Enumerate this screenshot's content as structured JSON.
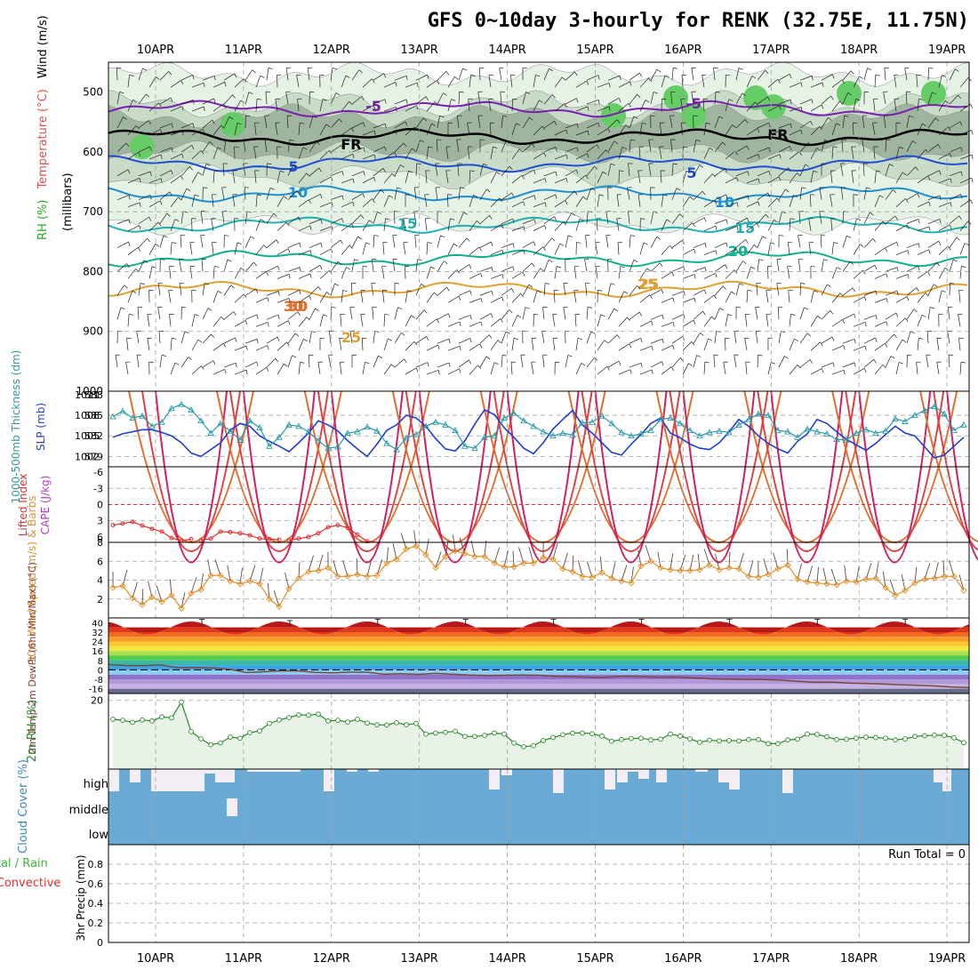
{
  "title": "GFS 0~10day 3-hourly for RENK (32.75E, 11.75N)",
  "colors": {
    "grid": "#a0a0a0",
    "frame": "#000000",
    "temp_neg": "#7a1fb0",
    "temp_fr": "#000000",
    "rh_light": "#e6f2e6",
    "rh_mid": "#c8dcc8",
    "rh_dark": "#9fb59f",
    "rh_green": "#66cc66",
    "thick": "#2a9aa8",
    "slp": "#1f3fd0",
    "cape": "#b040c0",
    "li": "#e03030",
    "wind10": "#e0902a",
    "barb": "#6a4a3a",
    "rh2m": "#2a8a2a",
    "rh2m_fill": "#e8f2e6",
    "cloud": "#6aaad4",
    "cloud_gap": "#f3eef6",
    "precip_total": "#33bb33",
    "precip_conv": "#e03030"
  },
  "chart_data": {
    "type": "line",
    "x_days": [
      "10APR",
      "11APR",
      "12APR",
      "13APR",
      "14APR",
      "15APR",
      "16APR",
      "17APR",
      "18APR",
      "19APR"
    ],
    "upper_air": {
      "ylabel_parts": [
        "RH (%)",
        "Temperature (°C)",
        "Wind (m/s)"
      ],
      "yunit": "(millibars)",
      "yticks": [
        "500",
        "600",
        "700",
        "800",
        "900",
        "1000"
      ],
      "ylim": [
        450,
        1000
      ],
      "contour_labels": [
        "-5",
        "FR",
        "5",
        "10",
        "15",
        "20",
        "25",
        "30",
        "25",
        "30",
        "-5",
        "FR",
        "5",
        "10",
        "15",
        "25",
        "30",
        "30"
      ],
      "isotherms": [
        {
          "label": "-5",
          "level": 528
        },
        {
          "label": "FR",
          "level": 575
        },
        {
          "label": "5",
          "level": 620
        },
        {
          "label": "10",
          "level": 670
        },
        {
          "label": "15",
          "level": 722
        },
        {
          "label": "20",
          "level": 778
        },
        {
          "label": "25",
          "level": 830
        }
      ]
    },
    "thickness_slp": {
      "ylabel": "1000-500mb Thickness (dm)",
      "ylabel2": "SLP (mb)",
      "yticks_left": [
        "588",
        "585",
        "582",
        "579"
      ],
      "yticks_right": [
        "1011",
        "1008",
        "1005",
        "1002"
      ],
      "thickness": [
        584.8,
        585.6,
        584.6,
        584.9,
        583.4,
        584.0,
        586.0,
        586.6,
        585.8,
        584.2,
        582.4,
        583.8,
        582.7,
        581.4,
        584.2,
        583.2,
        580.5,
        581.8,
        583.6,
        583.4,
        582.6,
        581.3,
        580.2,
        580.4,
        582.4,
        582.6,
        583.3,
        582.7,
        580.9,
        580.0,
        581.7,
        582.2,
        583.4,
        584.0,
        583.6,
        582.8,
        580.5,
        580.2,
        581.8,
        582.0,
        584.6,
        585.3,
        584.2,
        583.4,
        582.6,
        582.0,
        582.4,
        582.1,
        583.9,
        584.0,
        584.9,
        583.8,
        582.5,
        582.0,
        582.3,
        582.8,
        584.4,
        584.6,
        583.8,
        582.8,
        582.0,
        582.5,
        582.7,
        582.5,
        583.6,
        584.4,
        585.2,
        585.0,
        582.8,
        582.6,
        581.8,
        583.0,
        582.6,
        582.3,
        581.5,
        581.4,
        582.4,
        582.9,
        582.4,
        582.7,
        584.5,
        584.1,
        585.0,
        585.7,
        586.3,
        585.2,
        582.8,
        583.6
      ],
      "slp": [
        1004.8,
        1005.3,
        1005.6,
        1005.9,
        1005.9,
        1005.5,
        1005.0,
        1004.0,
        1002.5,
        1002.0,
        1003.0,
        1004.0,
        1005.8,
        1006.8,
        1006.4,
        1005.0,
        1004.2,
        1003.5,
        1002.7,
        1004.0,
        1005.4,
        1007.2,
        1006.6,
        1005.7,
        1004.3,
        1003.1,
        1002.0,
        1003.8,
        1005.8,
        1006.6,
        1008.0,
        1007.6,
        1006.4,
        1004.6,
        1003.1,
        1002.8,
        1004.3,
        1006.7,
        1008.8,
        1008.1,
        1006.2,
        1004.8,
        1003.2,
        1002.4,
        1004.0,
        1006.0,
        1007.4,
        1008.7,
        1006.6,
        1005.4,
        1004.0,
        1002.6,
        1002.2,
        1003.8,
        1005.2,
        1006.8,
        1007.6,
        1005.4,
        1004.7,
        1003.8,
        1003.2,
        1003.0,
        1004.0,
        1005.6,
        1007.4,
        1006.4,
        1005.0,
        1003.9,
        1003.1,
        1002.5,
        1004.2,
        1005.3,
        1007.4,
        1006.8,
        1005.6,
        1004.5,
        1003.7,
        1002.9,
        1003.9,
        1005.2,
        1006.4,
        1005.4,
        1005.0,
        1003.4,
        1001.8,
        1002.2,
        1003.5,
        1004.8
      ]
    },
    "cape_li": {
      "ylabel": "CAPE (J/kg)",
      "ylabel2": "Lifted Index",
      "yticks": [
        "-6",
        "-3",
        "0",
        "3",
        "6"
      ],
      "lifted_index": [
        3.8,
        3.5,
        3.2,
        3.9,
        4.5,
        5.0,
        6.2,
        6.7,
        6.4,
        6.6,
        6.3,
        5.0,
        5.1,
        5.3,
        5.7,
        6.3,
        6.4,
        6.5,
        6.6,
        6.3,
        6.0,
        5.3,
        4.2,
        3.8,
        4.3,
        5.6,
        6.8,
        7.2
      ]
    },
    "wind10m": {
      "ylabel": "10m Wind Speed (m/s) & Barbs",
      "yticks": [
        "2",
        "4",
        "6",
        "8"
      ],
      "speed": [
        3.2,
        3.4,
        2.1,
        1.4,
        2.2,
        1.7,
        2.4,
        1.0,
        2.6,
        3.0,
        4.5,
        4.5,
        3.9,
        3.6,
        3.9,
        3.6,
        2.0,
        1.2,
        3.1,
        4.2,
        4.9,
        5.0,
        5.3,
        4.4,
        4.4,
        4.6,
        4.4,
        4.5,
        5.8,
        6.2,
        7.3,
        7.6,
        6.7,
        5.3,
        6.5,
        7.1,
        6.8,
        6.5,
        6.5,
        5.8,
        5.4,
        5.4,
        5.8,
        5.8,
        6.4,
        6.2,
        5.2,
        4.9,
        4.4,
        4.3,
        4.8,
        4.2,
        3.9,
        3.7,
        5.5,
        6.0,
        5.3,
        5.1,
        5.0,
        5.0,
        5.1,
        5.6,
        5.1,
        5.3,
        5.2,
        4.4,
        4.3,
        4.6,
        5.2,
        5.6,
        4.1,
        3.8,
        3.7,
        3.6,
        3.5,
        3.9,
        3.8,
        4.1,
        4.2,
        3.2,
        2.4,
        2.9,
        3.7,
        4.1,
        4.2,
        4.4,
        4.4,
        2.9
      ]
    },
    "temp2m": {
      "ylabel": "2m Temp 2m DewPt (6hr Min/Max) (°C)",
      "yticks": [
        "40",
        "32",
        "24",
        "16",
        "8",
        "0",
        "-8",
        "-16"
      ],
      "temp_max": [
        41,
        40,
        41,
        41,
        41,
        41,
        41,
        41,
        41,
        41
      ],
      "temp_min": [
        27,
        26,
        26,
        26,
        26,
        27,
        27,
        27,
        26,
        27
      ],
      "dewpoint": [
        4.5,
        3.7,
        3.5,
        4.2,
        1.9,
        2.0,
        1.6,
        0.6,
        -2.2,
        -1.6,
        -0.8,
        -0.9,
        -2.1,
        -2.5,
        -1.9,
        -1.9,
        -3.7,
        -3.2,
        -3.8,
        -3.0,
        -3.7,
        -4.4,
        -4.7,
        -4.6,
        -4.4,
        -4.6,
        -5.5,
        -5.8,
        -6.3,
        -6.2,
        -5.4,
        -5.8,
        -6.2,
        -6.1,
        -6.8,
        -7.6,
        -7.9,
        -8.0,
        -8.1,
        -8.6,
        -9.6,
        -10.5,
        -10.4,
        -11.2,
        -11.6,
        -12.0,
        -12.6,
        -13.0,
        -13.6,
        -14.6,
        -15.0
      ]
    },
    "rh2m": {
      "ylabel": "2m RH (%)",
      "yticks": [
        "20"
      ],
      "values": [
        14.5,
        14.2,
        13.6,
        14.3,
        14.0,
        15.2,
        14.9,
        19.5,
        10.9,
        8.8,
        7.1,
        7.6,
        9.3,
        9.0,
        10.6,
        11.1,
        13.3,
        14.3,
        15.0,
        15.8,
        15.7,
        16.0,
        14.0,
        14.2,
        13.7,
        14.5,
        13.4,
        12.9,
        12.8,
        13.5,
        12.9,
        13.3,
        10.2,
        10.5,
        10.7,
        11.0,
        9.5,
        9.5,
        9.8,
        10.5,
        10.2,
        7.6,
        6.5,
        6.8,
        8.3,
        9.2,
        10.0,
        10.5,
        10.5,
        10.3,
        9.6,
        8.1,
        8.6,
        8.9,
        9.0,
        8.5,
        8.7,
        10.2,
        9.6,
        8.8,
        7.8,
        8.4,
        8.2,
        8.3,
        8.2,
        8.6,
        8.6,
        7.4,
        7.4,
        8.5,
        8.7,
        10.2,
        10.1,
        9.4,
        8.6,
        8.7,
        9.0,
        9.3,
        9.2,
        9.0,
        8.5,
        8.8,
        9.5,
        9.7,
        9.9,
        9.8,
        9.1,
        7.7
      ]
    },
    "cloud_cover": {
      "ylabel": "Cloud Cover (%)",
      "levels": [
        "high",
        "middle",
        "low"
      ]
    },
    "precip": {
      "ylabel": "3hr Precip (mm)",
      "ylabel_left": "Total / Rain",
      "ylabel_left2": "Convective",
      "yticks": [
        "0",
        "0.2",
        "0.4",
        "0.6",
        "0.8"
      ],
      "run_total": "Run Total = 0"
    }
  }
}
